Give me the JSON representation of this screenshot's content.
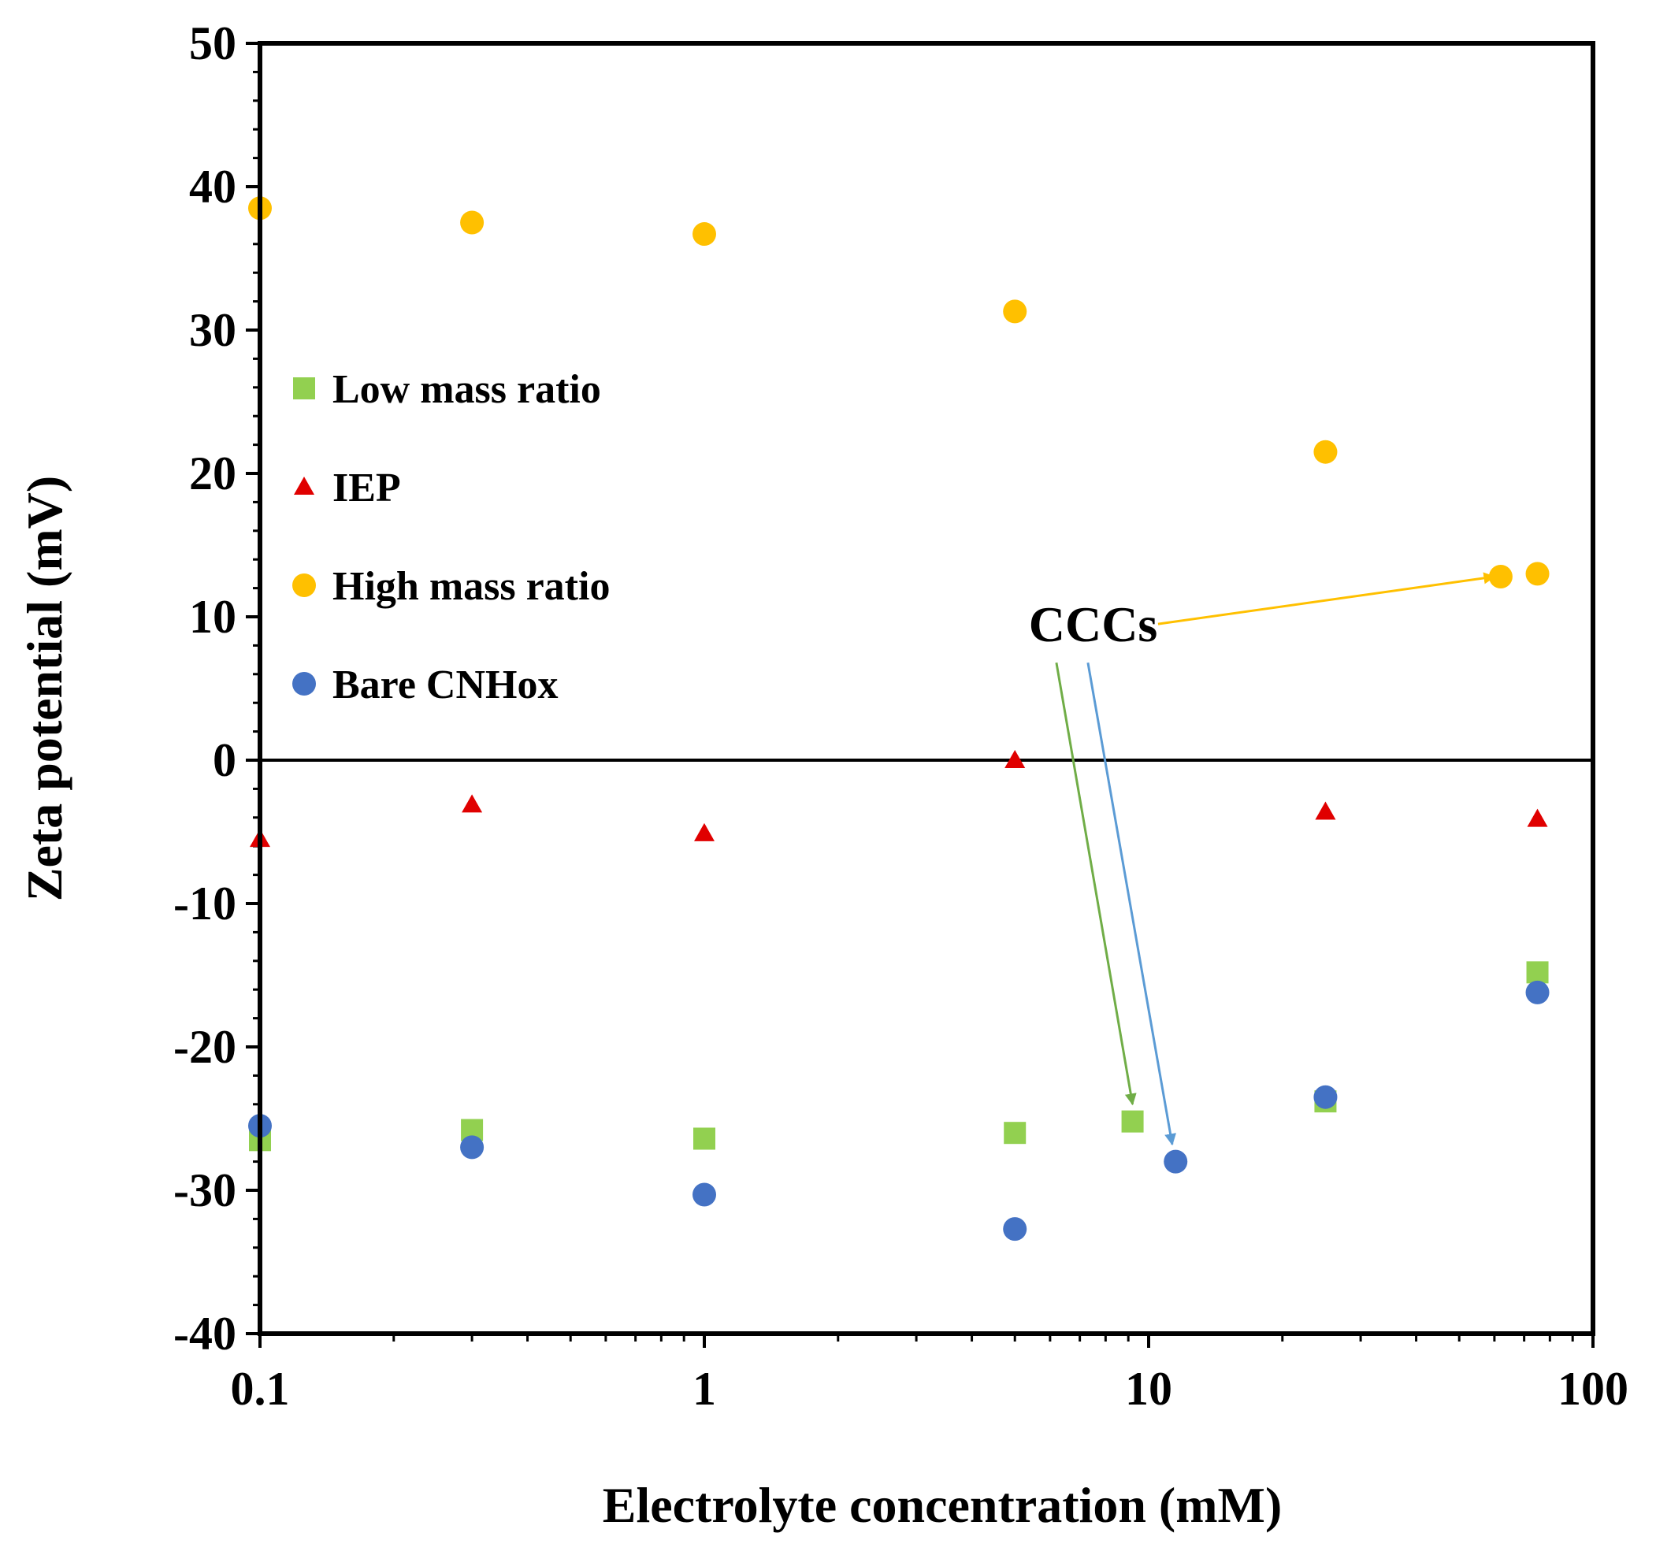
{
  "chart_data": {
    "type": "scatter",
    "title": "",
    "xlabel": "Electrolyte concentration (mM)",
    "ylabel": "Zeta potential (mV)",
    "xscale": "log",
    "xlim": [
      0.1,
      100
    ],
    "ylim": [
      -40,
      50
    ],
    "ytick_step": 10,
    "yticks": [
      "50",
      "40",
      "30",
      "20",
      "10",
      "0",
      "-10",
      "-20",
      "-30",
      "-40"
    ],
    "xticks": [
      "0.1",
      "1",
      "10",
      "100"
    ],
    "grid": false,
    "legend_position": "middle-left",
    "series": [
      {
        "name": "Low mass ratio",
        "marker": "square",
        "color": "#92D050",
        "points": [
          [
            0.1,
            -26.5
          ],
          [
            0.3,
            -25.8
          ],
          [
            1,
            -26.4
          ],
          [
            5,
            -26.0
          ],
          [
            9.2,
            -25.2
          ],
          [
            25,
            -23.8
          ],
          [
            75,
            -14.8
          ]
        ]
      },
      {
        "name": "IEP",
        "marker": "triangle",
        "color": "#E00000",
        "points": [
          [
            0.1,
            -5.5
          ],
          [
            0.3,
            -3.1
          ],
          [
            1,
            -5.1
          ],
          [
            5,
            0.0
          ],
          [
            25,
            -3.6
          ],
          [
            75,
            -4.1
          ]
        ]
      },
      {
        "name": "High mass ratio",
        "marker": "circle",
        "color": "#FFC000",
        "points": [
          [
            0.1,
            38.5
          ],
          [
            0.3,
            37.5
          ],
          [
            1,
            36.7
          ],
          [
            5,
            31.3
          ],
          [
            25,
            21.5
          ],
          [
            62,
            12.8
          ],
          [
            75,
            13.0
          ]
        ]
      },
      {
        "name": "Bare CNHox",
        "marker": "circle",
        "color": "#4472C4",
        "points": [
          [
            0.1,
            -25.5
          ],
          [
            0.3,
            -27.0
          ],
          [
            1,
            -30.3
          ],
          [
            5,
            -32.7
          ],
          [
            11.5,
            -28.0
          ],
          [
            25,
            -23.5
          ],
          [
            75,
            -16.2
          ]
        ]
      }
    ],
    "annotations": [
      {
        "text": "CCCs",
        "anchor": [
          7.5,
          9.5
        ],
        "arrows": [
          {
            "from": [
              10.5,
              9.5
            ],
            "to": [
              60,
              12.8
            ],
            "color": "#FFC000"
          },
          {
            "from": [
              6.2,
              6.8
            ],
            "to": [
              9.2,
              -24.0
            ],
            "color": "#70AD47"
          },
          {
            "from": [
              7.3,
              6.8
            ],
            "to": [
              11.3,
              -26.8
            ],
            "color": "#5B9BD5"
          }
        ]
      }
    ]
  }
}
